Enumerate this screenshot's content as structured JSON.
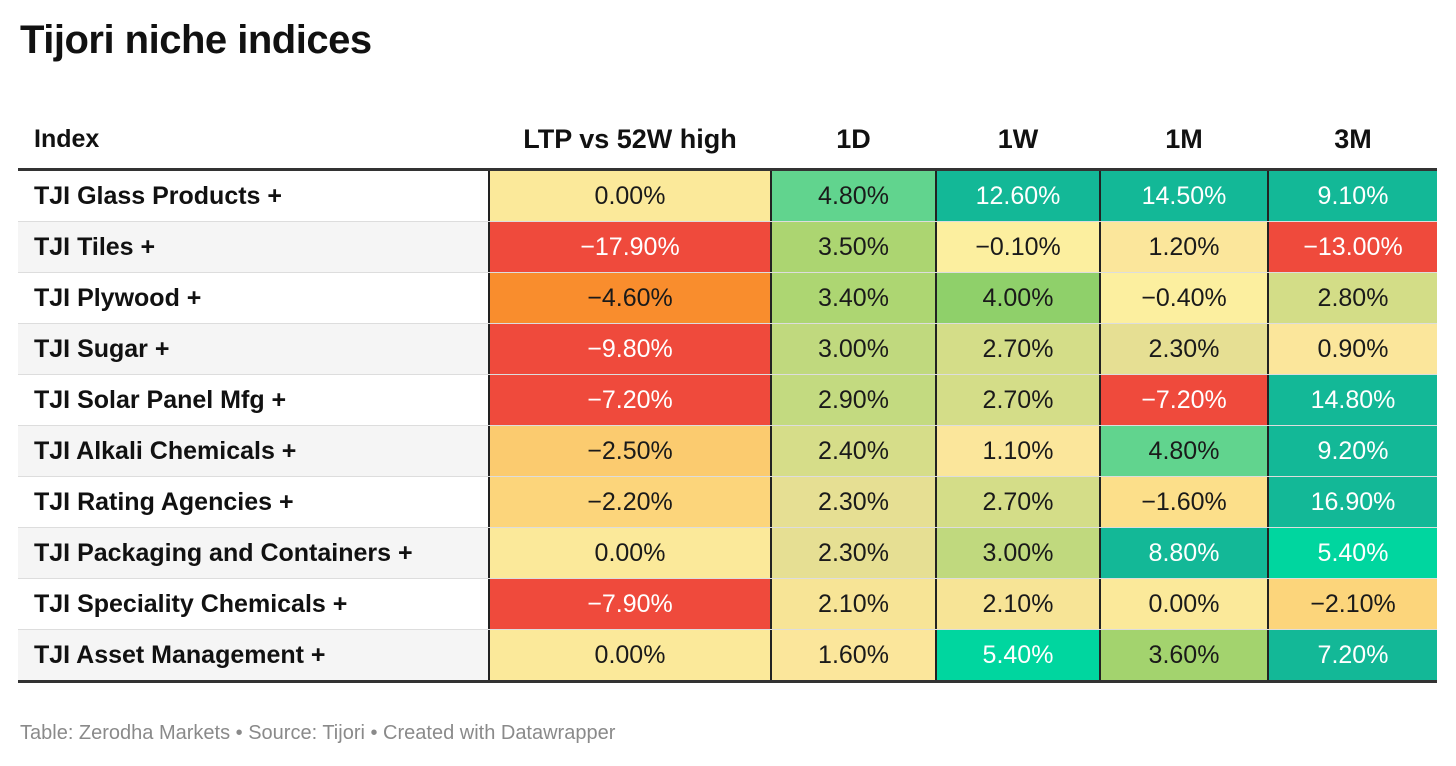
{
  "title": "Tijori niche indices",
  "footer": "Table: Zerodha Markets • Source: Tijori • Created with Datawrapper",
  "chart_data": {
    "type": "table",
    "columns": [
      "Index",
      "LTP vs 52W high",
      "1D",
      "1W",
      "1M",
      "3M"
    ],
    "rows": [
      {
        "index": "TJI Glass Products +",
        "values": [
          "0.00%",
          "4.80%",
          "12.60%",
          "14.50%",
          "9.10%"
        ],
        "colors": [
          "#fbe99a",
          "#61d48e",
          "#13b897",
          "#13b897",
          "#13b897"
        ]
      },
      {
        "index": "TJI Tiles +",
        "values": [
          "−17.90%",
          "3.50%",
          "−0.10%",
          "1.20%",
          "−13.00%"
        ],
        "colors": [
          "#ef4a3c",
          "#acd571",
          "#fcef9f",
          "#fbe69b",
          "#ef4a3c"
        ]
      },
      {
        "index": "TJI Plywood +",
        "values": [
          "−4.60%",
          "3.40%",
          "4.00%",
          "−0.40%",
          "2.80%"
        ],
        "colors": [
          "#f98d2d",
          "#add672",
          "#8fd06a",
          "#fcef9f",
          "#d3dd87"
        ]
      },
      {
        "index": "TJI Sugar +",
        "values": [
          "−9.80%",
          "3.00%",
          "2.70%",
          "2.30%",
          "0.90%"
        ],
        "colors": [
          "#ef4a3c",
          "#c0d97e",
          "#d4dd88",
          "#e6df93",
          "#fbe69b"
        ]
      },
      {
        "index": "TJI Solar Panel Mfg +",
        "values": [
          "−7.20%",
          "2.90%",
          "2.70%",
          "−7.20%",
          "14.80%"
        ],
        "colors": [
          "#ef4a3c",
          "#c3da80",
          "#d4dd88",
          "#ef4a3c",
          "#13b897"
        ]
      },
      {
        "index": "TJI Alkali Chemicals +",
        "values": [
          "−2.50%",
          "2.40%",
          "1.10%",
          "4.80%",
          "9.20%"
        ],
        "colors": [
          "#fbcb6f",
          "#d6dd89",
          "#fbe69b",
          "#61d48e",
          "#13b897"
        ]
      },
      {
        "index": "TJI Rating Agencies +",
        "values": [
          "−2.20%",
          "2.30%",
          "2.70%",
          "−1.60%",
          "16.90%"
        ],
        "colors": [
          "#fcd57b",
          "#e6df93",
          "#d4dd88",
          "#fcdf8a",
          "#13b897"
        ]
      },
      {
        "index": "TJI Packaging and Containers +",
        "values": [
          "0.00%",
          "2.30%",
          "3.00%",
          "8.80%",
          "5.40%"
        ],
        "colors": [
          "#fbe99a",
          "#e6df93",
          "#c0d97e",
          "#13b897",
          "#00d69f"
        ]
      },
      {
        "index": "TJI Speciality Chemicals +",
        "values": [
          "−7.90%",
          "2.10%",
          "2.10%",
          "0.00%",
          "−2.10%"
        ],
        "colors": [
          "#ef4a3c",
          "#f7e496",
          "#f7e496",
          "#fbe99a",
          "#fcd57b"
        ]
      },
      {
        "index": "TJI Asset Management +",
        "values": [
          "0.00%",
          "1.60%",
          "5.40%",
          "3.60%",
          "7.20%"
        ],
        "colors": [
          "#fbe99a",
          "#fbe69b",
          "#00d69f",
          "#a3d36e",
          "#13b897"
        ]
      }
    ]
  }
}
